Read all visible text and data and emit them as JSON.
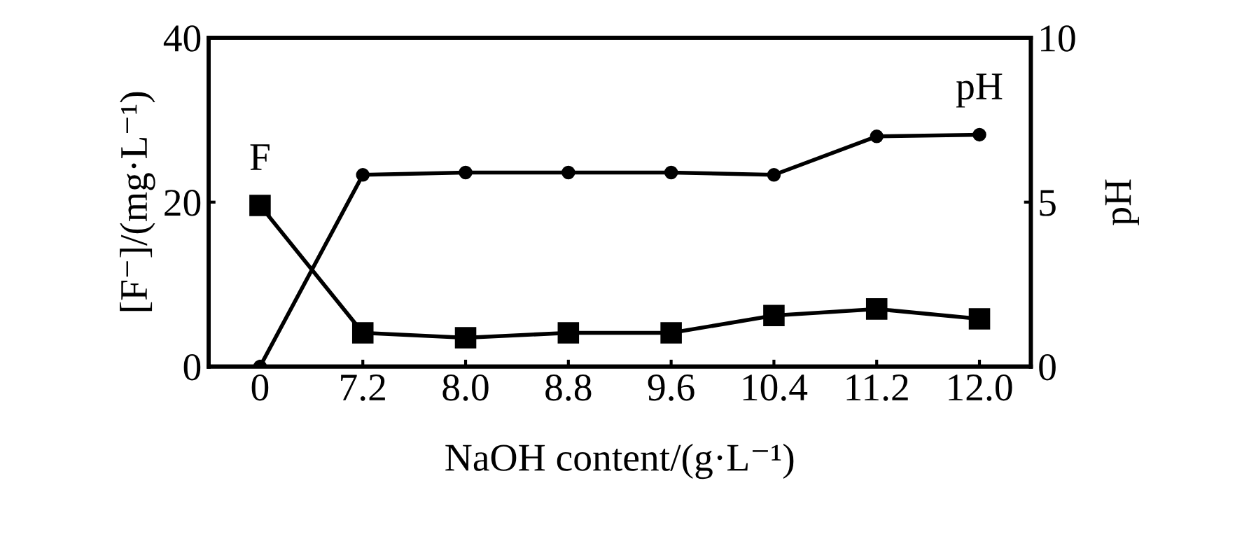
{
  "chart_data": {
    "type": "line",
    "xlabel": "NaOH content/(g·L⁻¹)",
    "ylabel": "[F⁻]/(mg·L⁻¹)",
    "y2label": "pH",
    "categories": [
      "0",
      "7.2",
      "8.0",
      "8.8",
      "9.6",
      "10.4",
      "11.2",
      "12.0"
    ],
    "series": [
      {
        "name": "F",
        "color": "#000000",
        "marker": "square",
        "values": [
          19.6,
          4.1,
          3.5,
          4.1,
          4.1,
          6.2,
          7.0,
          5.8
        ]
      },
      {
        "name": "pH",
        "color": "#000000",
        "marker": "circle",
        "axis": "y2",
        "values": [
          0,
          5.83,
          5.9,
          5.9,
          5.9,
          5.83,
          7.0,
          7.05
        ]
      }
    ],
    "ylim": [
      0,
      40
    ],
    "yticks": [
      0,
      20,
      40
    ],
    "y2lim": [
      0,
      10
    ],
    "y2ticks": [
      0,
      5,
      10
    ],
    "grid": false,
    "legend": false,
    "line_style": "solid"
  }
}
